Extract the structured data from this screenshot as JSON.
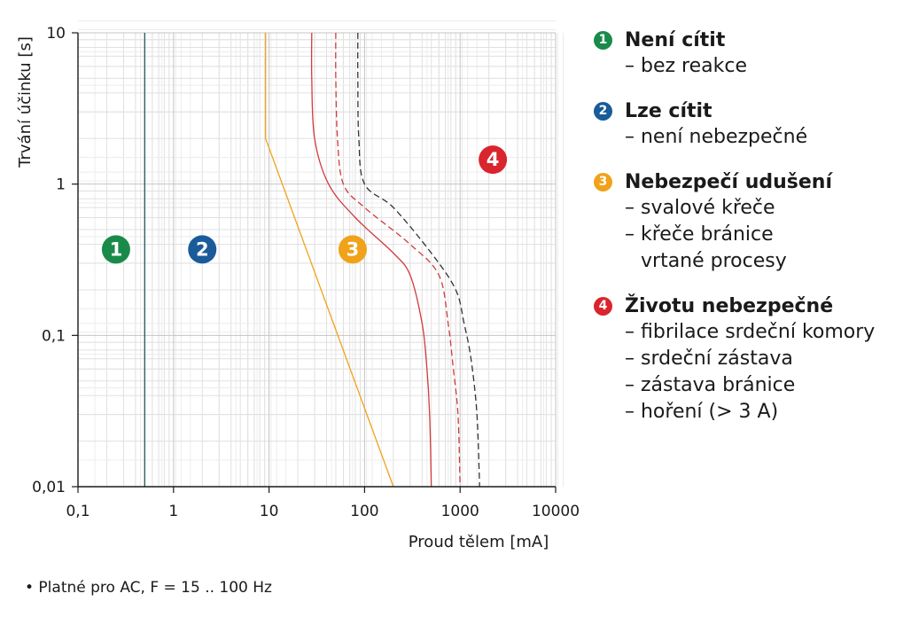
{
  "chart_data": {
    "type": "line",
    "xscale": "log",
    "yscale": "log",
    "xlim": [
      0.1,
      10000
    ],
    "ylim": [
      0.01,
      10
    ],
    "xlabel": "Proud tělem [mA]",
    "ylabel": "Trvání účinku [s]",
    "x_ticks": [
      {
        "value": 0.1,
        "label": "0,1"
      },
      {
        "value": 1,
        "label": "1"
      },
      {
        "value": 10,
        "label": "10"
      },
      {
        "value": 100,
        "label": "100"
      },
      {
        "value": 1000,
        "label": "1000"
      },
      {
        "value": 10000,
        "label": "10000"
      }
    ],
    "y_ticks": [
      {
        "value": 10,
        "label": "10"
      },
      {
        "value": 1,
        "label": "1"
      },
      {
        "value": 0.1,
        "label": "0,1"
      },
      {
        "value": 0.01,
        "label": "0,01"
      }
    ],
    "grid": true,
    "series": [
      {
        "id": "c1",
        "color": "#1f5a5a",
        "dash": "solid",
        "points": [
          [
            0.5,
            10
          ],
          [
            0.5,
            0.01
          ]
        ]
      },
      {
        "id": "c2",
        "color": "#f0a21a",
        "dash": "solid",
        "points": [
          [
            9.2,
            10
          ],
          [
            9.2,
            2
          ],
          [
            200,
            0.01
          ]
        ]
      },
      {
        "id": "c3",
        "color": "#d23a3a",
        "dash": "solid",
        "points": [
          [
            28,
            10
          ],
          [
            28,
            5
          ],
          [
            30,
            2
          ],
          [
            42,
            1
          ],
          [
            80,
            0.6
          ],
          [
            200,
            0.35
          ],
          [
            300,
            0.25
          ],
          [
            400,
            0.12
          ],
          [
            450,
            0.06
          ],
          [
            480,
            0.03
          ],
          [
            500,
            0.01
          ]
        ]
      },
      {
        "id": "c4",
        "color": "#d23a3a",
        "dash": "dashed",
        "points": [
          [
            50,
            10
          ],
          [
            50,
            5
          ],
          [
            52,
            2
          ],
          [
            60,
            1
          ],
          [
            100,
            0.7
          ],
          [
            300,
            0.4
          ],
          [
            600,
            0.25
          ],
          [
            750,
            0.12
          ],
          [
            850,
            0.06
          ],
          [
            950,
            0.03
          ],
          [
            1000,
            0.01
          ]
        ]
      },
      {
        "id": "c5",
        "color": "#333333",
        "dash": "dashed",
        "points": [
          [
            85,
            10
          ],
          [
            85,
            5
          ],
          [
            87,
            2
          ],
          [
            100,
            1
          ],
          [
            200,
            0.7
          ],
          [
            500,
            0.35
          ],
          [
            900,
            0.2
          ],
          [
            1100,
            0.12
          ],
          [
            1300,
            0.07
          ],
          [
            1500,
            0.03
          ],
          [
            1600,
            0.01
          ]
        ]
      }
    ],
    "zones": [
      {
        "num": "1",
        "color": "#1a8a4a",
        "x": 0.25,
        "y": 0.37
      },
      {
        "num": "2",
        "color": "#1a5b9a",
        "x": 2.0,
        "y": 0.37
      },
      {
        "num": "3",
        "color": "#f0a21a",
        "x": 75,
        "y": 0.37
      },
      {
        "num": "4",
        "color": "#d9252e",
        "x": 2200,
        "y": 1.45
      }
    ]
  },
  "legend": [
    {
      "num": "1",
      "color": "#1a8a4a",
      "title": "Není cítit",
      "items": [
        "– bez reakce"
      ]
    },
    {
      "num": "2",
      "color": "#1a5b9a",
      "title": "Lze cítit",
      "items": [
        "– není nebezpečné"
      ]
    },
    {
      "num": "3",
      "color": "#f0a21a",
      "title": "Nebezpečí udušení",
      "items": [
        "– svalové křeče",
        "– křeče bránice",
        "vrtané procesy"
      ]
    },
    {
      "num": "4",
      "color": "#d9252e",
      "title": "Životu nebezpečné",
      "items": [
        "– fibrilace srdeční komory",
        "– srdeční zástava",
        "– zástava bránice",
        "– hoření (> 3 A)"
      ]
    }
  ],
  "footnote": "• Platné pro AC, F = 15 .. 100 Hz"
}
